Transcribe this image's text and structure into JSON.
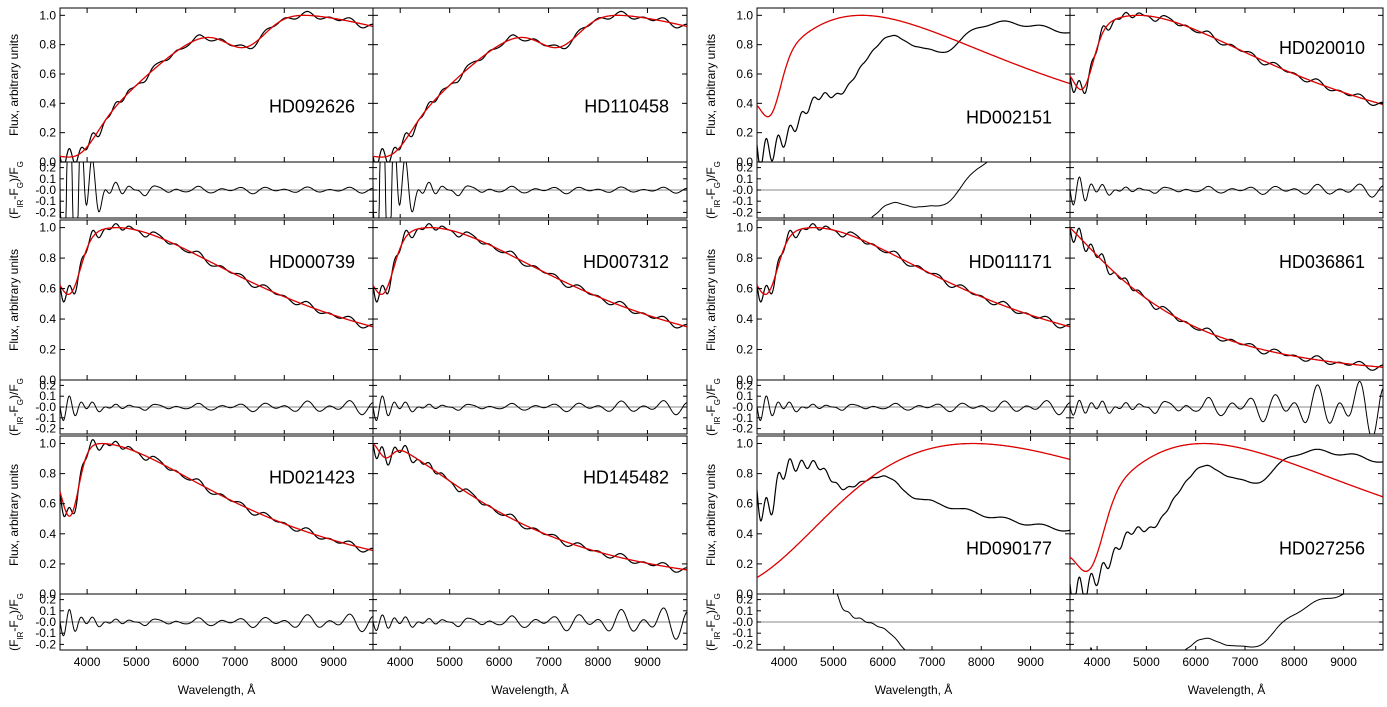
{
  "chart_data": {
    "type": "line",
    "series_legend": {
      "colors": {
        "observed": "#000000",
        "model": "#dd0000",
        "zero_line": "#888888"
      }
    },
    "xlabel": "Wavelength, Å",
    "ylabel_flux": "Flux, arbitrary units",
    "ylabel_resid": "(F",
    "ylabel_resid_sub1": "IR",
    "ylabel_resid_mid": "-F",
    "ylabel_resid_sub2": "G",
    "ylabel_resid_end": ")/F",
    "ylabel_resid_sub3": "G",
    "xlim": [
      3450,
      9800
    ],
    "x_ticks": [
      4000,
      5000,
      6000,
      7000,
      8000,
      9000
    ],
    "x_tick_labels": [
      "4000",
      "5000",
      "6000",
      "7000",
      "8000",
      "9000"
    ],
    "flux_ylim": [
      0.0,
      1.05
    ],
    "flux_ticks": [
      0.0,
      0.2,
      0.4,
      0.6,
      0.8,
      1.0
    ],
    "flux_tick_labels": [
      "0.0",
      "0.2",
      "0.4",
      "0.6",
      "0.8",
      "1.0"
    ],
    "resid_ylim": [
      -0.25,
      0.25
    ],
    "resid_ticks": [
      -0.2,
      -0.1,
      0.0,
      0.1,
      0.2
    ],
    "resid_tick_labels": [
      "-0.2",
      "-0.1",
      "-0.0",
      "0.1",
      "0.2"
    ],
    "panels": [
      {
        "name": "HD092626",
        "kind": "cool",
        "label_pos": "right-mid"
      },
      {
        "name": "HD110458",
        "kind": "cool",
        "label_pos": "right-mid"
      },
      {
        "name": "HD002151",
        "kind": "mismatch-cool",
        "label_pos": "right-low"
      },
      {
        "name": "HD020010",
        "kind": "hot-peak",
        "label_pos": "right-high"
      },
      {
        "name": "HD000739",
        "kind": "warm",
        "label_pos": "right-high"
      },
      {
        "name": "HD007312",
        "kind": "warm",
        "label_pos": "right-high"
      },
      {
        "name": "HD011171",
        "kind": "warm",
        "label_pos": "right-high"
      },
      {
        "name": "HD036861",
        "kind": "hot",
        "label_pos": "right-high"
      },
      {
        "name": "HD021423",
        "kind": "warm2",
        "label_pos": "right-high"
      },
      {
        "name": "HD145482",
        "kind": "hot2",
        "label_pos": "right-high"
      },
      {
        "name": "HD090177",
        "kind": "mismatch-rise",
        "label_pos": "right-low"
      },
      {
        "name": "HD027256",
        "kind": "mismatch-warm",
        "label_pos": "right-low"
      }
    ]
  }
}
